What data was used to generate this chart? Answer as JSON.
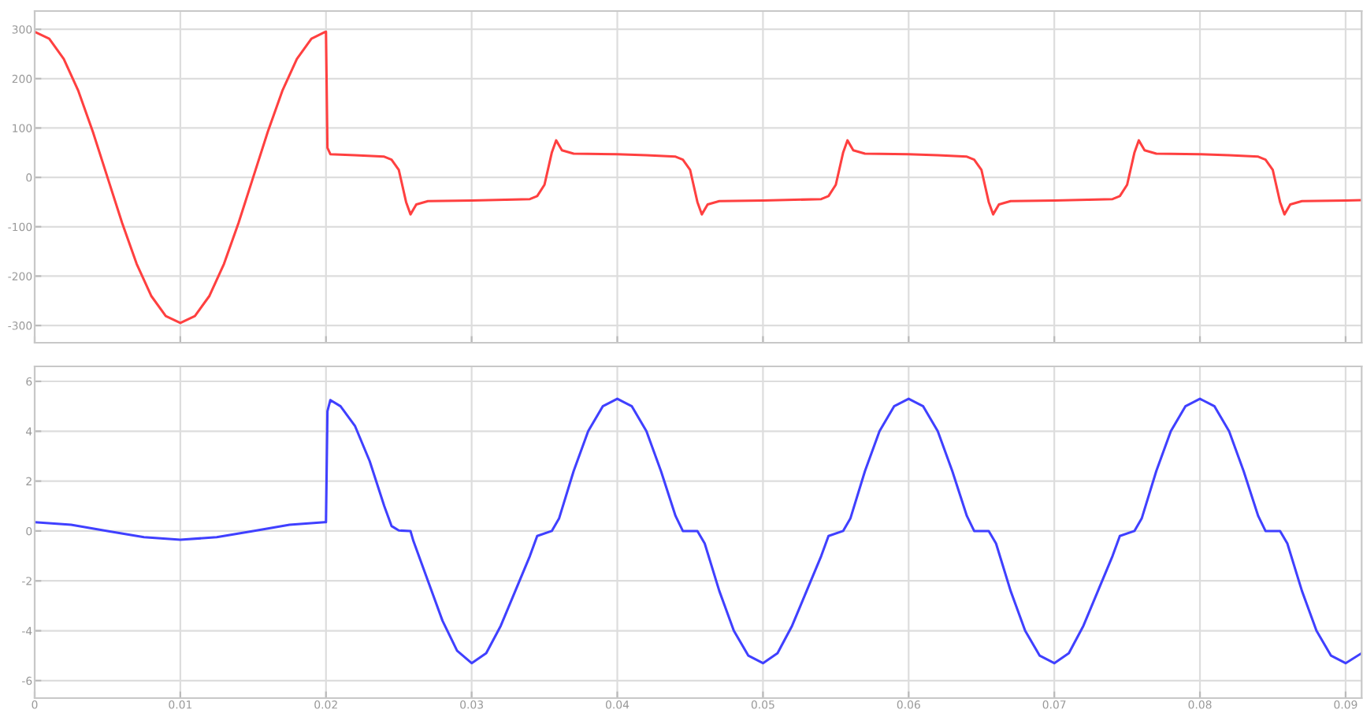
{
  "chart_data": [
    {
      "type": "line",
      "tick_labels": "y",
      "grid": true,
      "xlim": [
        0,
        0.0911
      ],
      "ylim": [
        -335,
        337
      ],
      "xticks": [
        0,
        0.01,
        0.02,
        0.03,
        0.04,
        0.05,
        0.06,
        0.07,
        0.08,
        0.09
      ],
      "yticks": [
        -300,
        -200,
        -100,
        0,
        100,
        200,
        300
      ],
      "series": [
        {
          "color": "#ff4040",
          "x": [
            0,
            0.001,
            0.002,
            0.003,
            0.004,
            0.005,
            0.006,
            0.007,
            0.008,
            0.009,
            0.01,
            0.011,
            0.012,
            0.013,
            0.014,
            0.015,
            0.016,
            0.017,
            0.018,
            0.019,
            0.0199,
            0.02,
            0.0201,
            0.0203,
            0.022,
            0.024,
            0.0245,
            0.025,
            0.0255,
            0.0258,
            0.0262,
            0.027,
            0.03,
            0.034,
            0.0345,
            0.035,
            0.0355,
            0.0358,
            0.0362,
            0.037,
            0.04,
            0.042,
            0.044,
            0.0445,
            0.045,
            0.0455,
            0.0458,
            0.0462,
            0.047,
            0.05,
            0.054,
            0.0545,
            0.055,
            0.0555,
            0.0558,
            0.0562,
            0.057,
            0.06,
            0.062,
            0.064,
            0.0645,
            0.065,
            0.0655,
            0.0658,
            0.0662,
            0.067,
            0.07,
            0.074,
            0.0745,
            0.075,
            0.0755,
            0.0758,
            0.0762,
            0.077,
            0.08,
            0.082,
            0.084,
            0.0845,
            0.085,
            0.0855,
            0.0858,
            0.0862,
            0.087,
            0.09,
            0.0911
          ],
          "values": [
            295,
            281,
            240,
            175,
            92,
            0,
            -92,
            -175,
            -240,
            -281,
            -295,
            -281,
            -240,
            -175,
            -92,
            0,
            92,
            175,
            240,
            281,
            294,
            295,
            60,
            47,
            45,
            42,
            36,
            15,
            -50,
            -75,
            -55,
            -48,
            -47,
            -44,
            -38,
            -15,
            50,
            75,
            55,
            48,
            47,
            45,
            42,
            36,
            15,
            -50,
            -75,
            -55,
            -48,
            -47,
            -44,
            -38,
            -15,
            50,
            75,
            55,
            48,
            47,
            45,
            42,
            36,
            15,
            -50,
            -75,
            -55,
            -48,
            -47,
            -44,
            -38,
            -15,
            50,
            75,
            55,
            48,
            47,
            45,
            42,
            36,
            15,
            -50,
            -75,
            -55,
            -48,
            -47,
            -46
          ]
        }
      ]
    },
    {
      "type": "line",
      "grid": true,
      "xlim": [
        0,
        0.0911
      ],
      "ylim": [
        -6.7,
        6.6
      ],
      "xticks": [
        0,
        0.01,
        0.02,
        0.03,
        0.04,
        0.05,
        0.06,
        0.07,
        0.08,
        0.09
      ],
      "yticks": [
        -6,
        -4,
        -2,
        0,
        2,
        4,
        6
      ],
      "series": [
        {
          "color": "#4040ff",
          "x": [
            0,
            0.0025,
            0.005,
            0.0075,
            0.01,
            0.0125,
            0.015,
            0.0175,
            0.0199,
            0.02,
            0.0201,
            0.0203,
            0.021,
            0.022,
            0.023,
            0.024,
            0.0245,
            0.025,
            0.0258,
            0.026,
            0.027,
            0.028,
            0.029,
            0.03,
            0.031,
            0.032,
            0.033,
            0.034,
            0.0345,
            0.0355,
            0.036,
            0.037,
            0.038,
            0.039,
            0.04,
            0.041,
            0.042,
            0.043,
            0.044,
            0.0445,
            0.0455,
            0.046,
            0.047,
            0.048,
            0.049,
            0.05,
            0.051,
            0.052,
            0.053,
            0.054,
            0.0545,
            0.0555,
            0.056,
            0.057,
            0.058,
            0.059,
            0.06,
            0.061,
            0.062,
            0.063,
            0.064,
            0.0645,
            0.0655,
            0.066,
            0.067,
            0.068,
            0.069,
            0.07,
            0.071,
            0.072,
            0.073,
            0.074,
            0.0745,
            0.0755,
            0.076,
            0.077,
            0.078,
            0.079,
            0.08,
            0.081,
            0.082,
            0.083,
            0.084,
            0.0845,
            0.0855,
            0.086,
            0.087,
            0.088,
            0.089,
            0.09,
            0.0911
          ],
          "values": [
            0.35,
            0.25,
            0,
            -0.25,
            -0.35,
            -0.25,
            0,
            0.25,
            0.35,
            0.35,
            4.8,
            5.25,
            5.0,
            4.2,
            2.8,
            1.0,
            0.2,
            0.02,
            0,
            -0.4,
            -2.0,
            -3.6,
            -4.8,
            -5.3,
            -4.9,
            -3.8,
            -2.4,
            -1.0,
            -0.2,
            0,
            0.5,
            2.4,
            4.0,
            5.0,
            5.3,
            5.0,
            4.0,
            2.4,
            0.6,
            0,
            0,
            -0.5,
            -2.4,
            -4.0,
            -5.0,
            -5.3,
            -4.9,
            -3.8,
            -2.4,
            -1.0,
            -0.2,
            0,
            0.5,
            2.4,
            4.0,
            5.0,
            5.3,
            5.0,
            4.0,
            2.4,
            0.6,
            0,
            0,
            -0.5,
            -2.4,
            -4.0,
            -5.0,
            -5.3,
            -4.9,
            -3.8,
            -2.4,
            -1.0,
            -0.2,
            0,
            0.5,
            2.4,
            4.0,
            5.0,
            5.3,
            5.0,
            4.0,
            2.4,
            0.6,
            0,
            0,
            -0.5,
            -2.4,
            -4.0,
            -5.0,
            -5.3,
            -4.9
          ]
        }
      ]
    }
  ]
}
